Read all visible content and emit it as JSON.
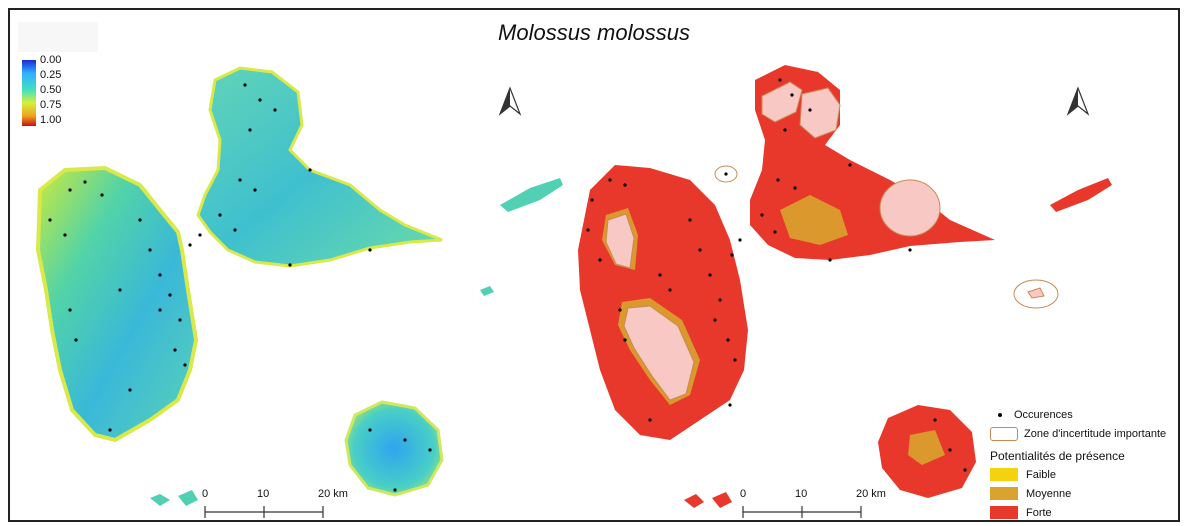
{
  "title": "Molossus molossus",
  "colorbar": {
    "ticks": [
      "0.00",
      "0.25",
      "0.50",
      "0.75",
      "1.00"
    ],
    "colors": [
      "#1a2bd6",
      "#2fb0ff",
      "#3fe0c0",
      "#d6f03a",
      "#f0a020",
      "#c81010"
    ]
  },
  "scalebar": {
    "left": {
      "labels": [
        "0",
        "10",
        "20 km"
      ]
    },
    "right": {
      "labels": [
        "0",
        "10",
        "20 km"
      ]
    }
  },
  "legend": {
    "occurrences_label": "Occurences",
    "uncertainty_label": "Zone d'incertitude importante",
    "potential_title": "Potentialités de présence",
    "classes": [
      {
        "label": "Faible",
        "color": "#f5d20f"
      },
      {
        "label": "Moyenne",
        "color": "#d9a32e"
      },
      {
        "label": "Forte",
        "color": "#e8382b"
      }
    ]
  },
  "palette": {
    "forte": "#e8382b",
    "uncertainty_fill": "#f7c8c4",
    "uncertainty_border": "#c98a52",
    "occurrence": "#000000"
  },
  "icons": [
    "north-arrow-icon",
    "north-arrow-icon"
  ]
}
